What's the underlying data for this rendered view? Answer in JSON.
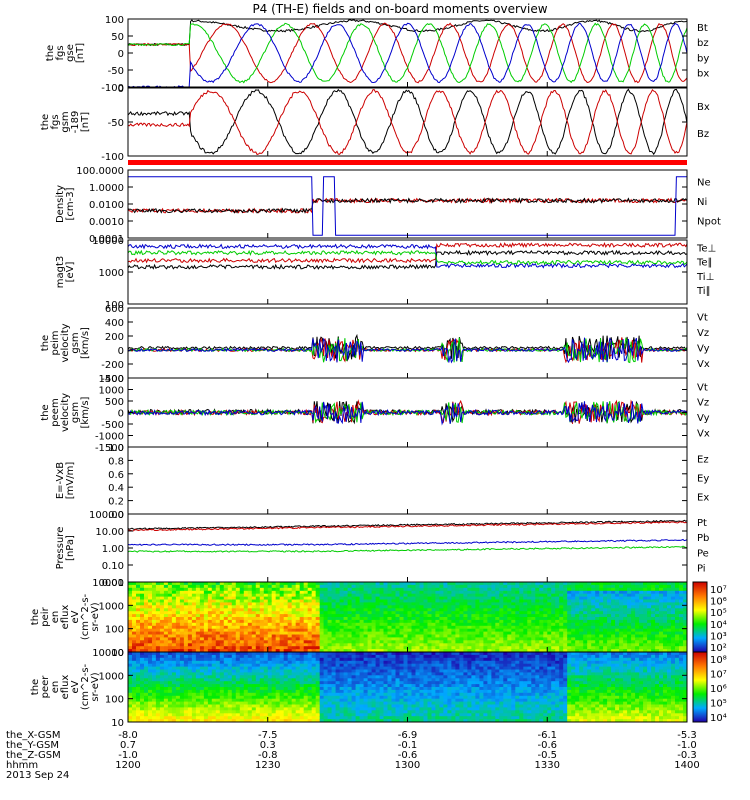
{
  "title": "P4 (TH-E) fields and on-board moments overview",
  "date": "2013 Sep 24",
  "colors": {
    "black": "#000000",
    "red": "#cc0000",
    "green": "#00cc00",
    "blue": "#0000cc"
  },
  "chart_data": [
    {
      "type": "line",
      "name": "fgs_gse",
      "ylabel": [
        "the",
        "fgs",
        "gse",
        "[nT]"
      ],
      "ylim": [
        -100,
        100
      ],
      "yticks": [
        "100",
        "50",
        "0",
        "-50",
        "-100"
      ],
      "series": [
        {
          "name": "Bt",
          "color": "#000000"
        },
        {
          "name": "bz",
          "color": "#cc0000"
        },
        {
          "name": "by",
          "color": "#00cc00"
        },
        {
          "name": "bx",
          "color": "#0000cc"
        }
      ]
    },
    {
      "type": "line",
      "name": "fgs_gsm",
      "ylabel": [
        "the",
        "fgs",
        "gsm",
        "-189",
        "[nT]"
      ],
      "ylim": [
        -120,
        0
      ],
      "yticks": [
        "0",
        "-50",
        "-100"
      ],
      "series": [
        {
          "name": "Bx",
          "color": "#000000"
        },
        {
          "name": "Bz",
          "color": "#cc0000"
        }
      ]
    },
    {
      "type": "line",
      "name": "density",
      "ylabel": [
        "Density",
        "[cm-3]"
      ],
      "yscale": "log",
      "yticks": [
        "100.0000",
        "1.0000",
        "0.0100",
        "0.0010",
        "0.0001"
      ],
      "series": [
        {
          "name": "Ne",
          "color": "#cc0000"
        },
        {
          "name": "Ni",
          "color": "#000000"
        },
        {
          "name": "Npot",
          "color": "#0000cc"
        }
      ]
    },
    {
      "type": "line",
      "name": "temperature",
      "ylabel": [
        "magt3",
        "[eV]"
      ],
      "yscale": "log",
      "yticks": [
        "10000",
        "1000",
        "100"
      ],
      "series": [
        {
          "name": "Te⊥",
          "color": "#cc0000"
        },
        {
          "name": "Te∥",
          "color": "#000000"
        },
        {
          "name": "Ti⊥",
          "color": "#0000cc"
        },
        {
          "name": "Ti∥",
          "color": "#00cc00"
        }
      ]
    },
    {
      "type": "line",
      "name": "peim_velocity",
      "ylabel": [
        "the",
        "peim",
        "velocity",
        "gsm",
        "[km/s]"
      ],
      "ylim": [
        -400,
        600
      ],
      "yticks": [
        "600",
        "400",
        "200",
        "0",
        "-200",
        "-400"
      ],
      "series": [
        {
          "name": "Vt",
          "color": "#000000"
        },
        {
          "name": "Vz",
          "color": "#cc0000"
        },
        {
          "name": "Vy",
          "color": "#00cc00"
        },
        {
          "name": "Vx",
          "color": "#0000cc"
        }
      ]
    },
    {
      "type": "line",
      "name": "peem_velocity",
      "ylabel": [
        "the",
        "peem",
        "velocity",
        "gsm",
        "[km/s]"
      ],
      "ylim": [
        -1500,
        1500
      ],
      "yticks": [
        "1500",
        "1000",
        "500",
        "0",
        "-500",
        "-1000",
        "-1500"
      ],
      "series": [
        {
          "name": "Vt",
          "color": "#000000"
        },
        {
          "name": "Vz",
          "color": "#cc0000"
        },
        {
          "name": "Vy",
          "color": "#00cc00"
        },
        {
          "name": "Vx",
          "color": "#0000cc"
        }
      ]
    },
    {
      "type": "line",
      "name": "E_vxb",
      "ylabel": [
        "E=-VxB",
        "[mV/m]"
      ],
      "ylim": [
        0,
        1
      ],
      "yticks": [
        "1.0",
        "0.8",
        "0.6",
        "0.4",
        "0.2",
        "0.0"
      ],
      "series": [
        {
          "name": "Ez",
          "color": "#cc0000"
        },
        {
          "name": "Ey",
          "color": "#00cc00"
        },
        {
          "name": "Ex",
          "color": "#0000cc"
        }
      ]
    },
    {
      "type": "line",
      "name": "pressure",
      "ylabel": [
        "Pressure",
        "[nPa]"
      ],
      "yscale": "log",
      "yticks": [
        "100.00",
        "10.00",
        "1.00",
        "0.10",
        "0.01"
      ],
      "series": [
        {
          "name": "Pt",
          "color": "#000000"
        },
        {
          "name": "Pb",
          "color": "#cc0000"
        },
        {
          "name": "Pe",
          "color": "#00cc00"
        },
        {
          "name": "Pi",
          "color": "#0000cc"
        }
      ]
    },
    {
      "type": "heatmap",
      "name": "peir_eflux",
      "ylabel": [
        "the",
        "peir",
        "en",
        "eflux",
        "eV",
        "(cm^2-s-",
        "sr-eV)"
      ],
      "yticks": [
        "10000",
        "1000",
        "100",
        "10"
      ],
      "colorbar_ticks": [
        "10⁷",
        "10⁶",
        "10⁵",
        "10⁴",
        "10³",
        "10²"
      ]
    },
    {
      "type": "heatmap",
      "name": "peer_eflux",
      "ylabel": [
        "the",
        "peer",
        "en",
        "eflux",
        "eV",
        "(cm^2-s-",
        "sr-eV)"
      ],
      "yticks": [
        "10000",
        "1000",
        "100",
        "10"
      ],
      "colorbar_ticks": [
        "10⁸",
        "10⁷",
        "10⁶",
        "10⁵",
        "10⁴"
      ]
    }
  ],
  "x_axis": {
    "labels": [
      "the_X-GSM",
      "the_Y-GSM",
      "the_Z-GSM",
      "hhmm"
    ],
    "rows": [
      [
        "-8.0",
        "-7.5",
        "-6.9",
        "-6.1",
        "-5.3"
      ],
      [
        "0.7",
        "0.3",
        "-0.1",
        "-0.6",
        "-1.0"
      ],
      [
        "-1.0",
        "-0.8",
        "-0.6",
        "-0.5",
        "-0.3"
      ],
      [
        "1200",
        "1230",
        "1300",
        "1330",
        "1400"
      ]
    ]
  }
}
